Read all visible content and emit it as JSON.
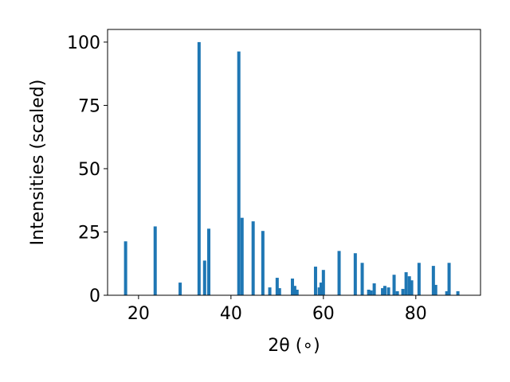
{
  "chart_data": {
    "type": "bar",
    "xlabel": "2θ (∘)",
    "ylabel": "Intensities (scaled)",
    "color": "#1f77b4",
    "x": [
      17.2,
      23.6,
      29.0,
      33.1,
      34.3,
      35.2,
      41.7,
      42.4,
      44.8,
      46.9,
      48.4,
      50.0,
      50.5,
      53.3,
      53.8,
      54.3,
      58.3,
      59.1,
      59.5,
      60.0,
      63.4,
      66.9,
      68.4,
      69.8,
      70.3,
      71.0,
      72.8,
      73.3,
      74.1,
      75.3,
      76.0,
      77.2,
      77.9,
      78.6,
      79.1,
      80.7,
      83.8,
      84.3,
      86.7,
      87.2,
      89.1
    ],
    "values": [
      21.3,
      27.2,
      5,
      100,
      13.7,
      26.3,
      96.3,
      30.6,
      29.2,
      25.4,
      3.1,
      6.9,
      2.8,
      6.6,
      3.7,
      2.2,
      11.3,
      3.1,
      5,
      10,
      17.5,
      16.6,
      12.8,
      2.2,
      1.9,
      4.7,
      2.8,
      3.7,
      3.1,
      8.1,
      1.6,
      2.5,
      9.1,
      7.5,
      5.9,
      12.8,
      11.6,
      4.1,
      1.6,
      12.8,
      1.6
    ],
    "xlim": [
      13.3,
      94.0
    ],
    "ylim": [
      0,
      105
    ],
    "xticks": [
      20,
      40,
      60,
      80
    ],
    "yticks": [
      0,
      25,
      50,
      75,
      100
    ]
  }
}
